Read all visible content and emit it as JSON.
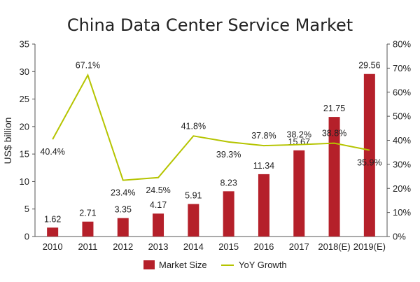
{
  "chart_data": {
    "type": "bar",
    "title": "China Data Center Service Market",
    "ylabel": "US$ billion",
    "categories": [
      "2010",
      "2011",
      "2012",
      "2013",
      "2014",
      "2015",
      "2016",
      "2017",
      "2018(E)",
      "2019(E)"
    ],
    "series": [
      {
        "name": "Market Size",
        "type": "bar",
        "axis": "left",
        "color": "#b5202a",
        "values": [
          1.62,
          2.71,
          3.35,
          4.17,
          5.91,
          8.23,
          11.34,
          15.67,
          21.75,
          29.56
        ],
        "labels": [
          "1.62",
          "2.71",
          "3.35",
          "4.17",
          "5.91",
          "8.23",
          "11.34",
          "15.67",
          "21.75",
          "29.56"
        ]
      },
      {
        "name": "YoY Growth",
        "type": "line",
        "axis": "right",
        "color": "#b5c400",
        "values": [
          40.4,
          67.1,
          23.4,
          24.5,
          41.8,
          39.3,
          37.8,
          38.2,
          38.8,
          35.9
        ],
        "labels": [
          "40.4%",
          "67.1%",
          "23.4%",
          "24.5%",
          "41.8%",
          "39.3%",
          "37.8%",
          "38.2%",
          "38.8%",
          "35.9%"
        ]
      }
    ],
    "y_left": {
      "min": 0,
      "max": 35,
      "ticks": [
        "0",
        "5",
        "10",
        "15",
        "20",
        "25",
        "30",
        "35"
      ]
    },
    "y_right": {
      "min": 0,
      "max": 80,
      "ticks": [
        "0%",
        "10%",
        "20%",
        "30%",
        "40%",
        "50%",
        "60%",
        "70%",
        "80%"
      ]
    },
    "grid": false,
    "legend": "bottom"
  }
}
